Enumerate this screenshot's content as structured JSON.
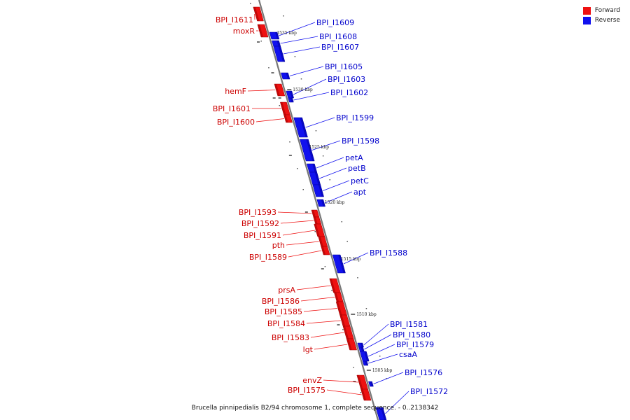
{
  "legend": [
    {
      "label": "Forward",
      "color": "#ee1111"
    },
    {
      "label": "Reverse",
      "color": "#1111ee"
    }
  ],
  "caption": "Brucella pinnipedialis B2/94 chromosome 1, complete sequence. - 0..2138342",
  "forward_genes": [
    "BPI_I1611",
    "moxR",
    "hemF",
    "BPI_I1601",
    "BPI_I1600",
    "BPI_I1593",
    "BPI_I1592",
    "BPI_I1591",
    "pth",
    "BPI_I1589",
    "prsA",
    "BPI_I1586",
    "BPI_I1585",
    "BPI_I1584",
    "BPI_I1583",
    "lgt",
    "envZ",
    "BPI_I1575"
  ],
  "reverse_genes": [
    "BPI_I1609",
    "BPI_I1608",
    "BPI_I1607",
    "BPI_I1605",
    "BPI_I1603",
    "BPI_I1602",
    "BPI_I1599",
    "BPI_I1598",
    "petA",
    "petB",
    "petC",
    "apt",
    "BPI_I1588",
    "BPI_I1581",
    "BPI_I1580",
    "BPI_I1579",
    "csaA",
    "BPI_I1576",
    "BPI_I1572"
  ],
  "scale_ticks": [
    "1535 kbp",
    "1530 kbp",
    "1525 kbp",
    "1520 kbp",
    "1515 kbp",
    "1510 kbp",
    "1505 kbp"
  ]
}
